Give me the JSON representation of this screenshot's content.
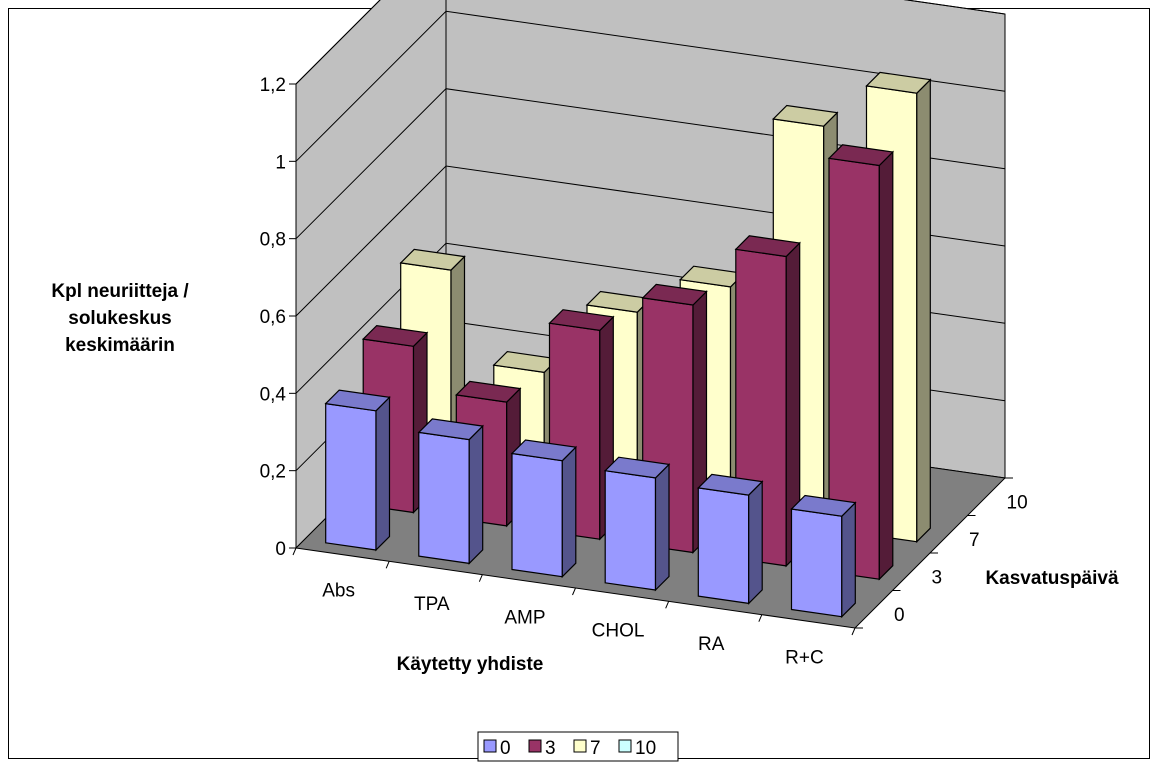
{
  "chart_data": {
    "type": "bar",
    "subtype": "3d-column",
    "categories": [
      "Abs",
      "TPA",
      "AMP",
      "CHOL",
      "RA",
      "R+C"
    ],
    "series": [
      {
        "name": "0",
        "values": [
          0.36,
          0.32,
          0.3,
          0.29,
          0.28,
          0.26
        ],
        "color": "#9999ff"
      },
      {
        "name": "3",
        "values": [
          0.43,
          0.32,
          0.54,
          0.64,
          0.8,
          1.07
        ],
        "color": "#993366"
      },
      {
        "name": "7",
        "values": [
          0.53,
          0.3,
          0.49,
          0.59,
          1.04,
          1.16
        ],
        "color": "#ffffcc"
      },
      {
        "name": "10",
        "values": [
          0,
          0,
          0,
          0,
          0,
          0
        ],
        "color": "#ccffff"
      }
    ],
    "ylim": [
      0,
      1.2
    ],
    "yticks": [
      "0",
      "0,2",
      "0,4",
      "0,6",
      "0,8",
      "1",
      "1,2"
    ],
    "depth_ticks": [
      "0",
      "3",
      "7",
      "10"
    ],
    "ylabel": [
      "Kpl neuriitteja /",
      "solukeskus",
      "keskimäärin"
    ],
    "xlabel": "Käytetty yhdiste",
    "zlabel": "Kasvatuspäivä",
    "legend_position": "bottom",
    "wall_color": "#c0c0c0",
    "floor_color": "#808080"
  }
}
